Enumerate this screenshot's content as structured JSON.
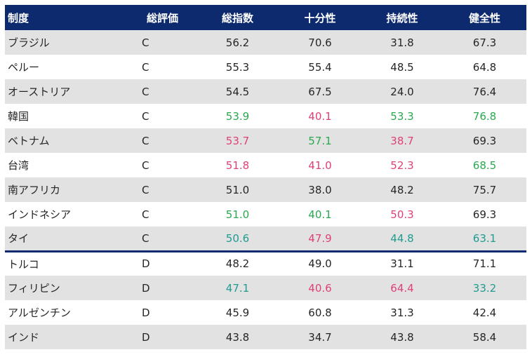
{
  "header": {
    "name": "制度",
    "grade": "総評価",
    "overall": "総指数",
    "adequacy": "十分性",
    "sustainability": "持続性",
    "integrity": "健全性"
  },
  "colors": {
    "header_bg": "#0e2a6e",
    "row_stripe": "#e2e2e2",
    "green": "#2aa84f",
    "pink": "#e0407a",
    "teal": "#1f9b8f"
  },
  "rows": [
    {
      "name": "ブラジル",
      "grade": "C",
      "overall": "56.2",
      "adequacy": "70.6",
      "sustainability": "31.8",
      "integrity": "67.3",
      "c_overall": "gray",
      "c_adequacy": "gray",
      "c_sustainability": "gray",
      "c_integrity": "gray"
    },
    {
      "name": "ペルー",
      "grade": "C",
      "overall": "55.3",
      "adequacy": "55.4",
      "sustainability": "48.5",
      "integrity": "64.8",
      "c_overall": "gray",
      "c_adequacy": "gray",
      "c_sustainability": "gray",
      "c_integrity": "gray"
    },
    {
      "name": "オーストリア",
      "grade": "C",
      "overall": "54.5",
      "adequacy": "67.5",
      "sustainability": "24.0",
      "integrity": "76.4",
      "c_overall": "gray",
      "c_adequacy": "gray",
      "c_sustainability": "gray",
      "c_integrity": "gray"
    },
    {
      "name": "韓国",
      "grade": "C",
      "overall": "53.9",
      "adequacy": "40.1",
      "sustainability": "53.3",
      "integrity": "76.8",
      "c_overall": "green",
      "c_adequacy": "pink",
      "c_sustainability": "green",
      "c_integrity": "green"
    },
    {
      "name": "ベトナム",
      "grade": "C",
      "overall": "53.7",
      "adequacy": "57.1",
      "sustainability": "38.7",
      "integrity": "69.3",
      "c_overall": "pink",
      "c_adequacy": "green",
      "c_sustainability": "pink",
      "c_integrity": "gray"
    },
    {
      "name": "台湾",
      "grade": "C",
      "overall": "51.8",
      "adequacy": "41.0",
      "sustainability": "52.3",
      "integrity": "68.5",
      "c_overall": "pink",
      "c_adequacy": "pink",
      "c_sustainability": "pink",
      "c_integrity": "green"
    },
    {
      "name": "南アフリカ",
      "grade": "C",
      "overall": "51.0",
      "adequacy": "38.0",
      "sustainability": "48.2",
      "integrity": "75.7",
      "c_overall": "gray",
      "c_adequacy": "gray",
      "c_sustainability": "gray",
      "c_integrity": "gray"
    },
    {
      "name": "インドネシア",
      "grade": "C",
      "overall": "51.0",
      "adequacy": "40.1",
      "sustainability": "50.3",
      "integrity": "69.3",
      "c_overall": "green",
      "c_adequacy": "green",
      "c_sustainability": "pink",
      "c_integrity": "gray"
    },
    {
      "name": "タイ",
      "grade": "C",
      "overall": "50.6",
      "adequacy": "47.9",
      "sustainability": "44.8",
      "integrity": "63.1",
      "c_overall": "teal",
      "c_adequacy": "pink",
      "c_sustainability": "teal",
      "c_integrity": "teal"
    },
    {
      "name": "トルコ",
      "grade": "D",
      "overall": "48.2",
      "adequacy": "49.0",
      "sustainability": "31.1",
      "integrity": "71.1",
      "c_overall": "gray",
      "c_adequacy": "gray",
      "c_sustainability": "gray",
      "c_integrity": "gray"
    },
    {
      "name": "フィリピン",
      "grade": "D",
      "overall": "47.1",
      "adequacy": "40.6",
      "sustainability": "64.4",
      "integrity": "33.2",
      "c_overall": "teal",
      "c_adequacy": "pink",
      "c_sustainability": "pink",
      "c_integrity": "teal"
    },
    {
      "name": "アルゼンチン",
      "grade": "D",
      "overall": "45.9",
      "adequacy": "60.8",
      "sustainability": "31.3",
      "integrity": "42.4",
      "c_overall": "gray",
      "c_adequacy": "gray",
      "c_sustainability": "gray",
      "c_integrity": "gray"
    },
    {
      "name": "インド",
      "grade": "D",
      "overall": "43.8",
      "adequacy": "34.7",
      "sustainability": "43.8",
      "integrity": "58.4",
      "c_overall": "gray",
      "c_adequacy": "gray",
      "c_sustainability": "gray",
      "c_integrity": "gray"
    }
  ]
}
